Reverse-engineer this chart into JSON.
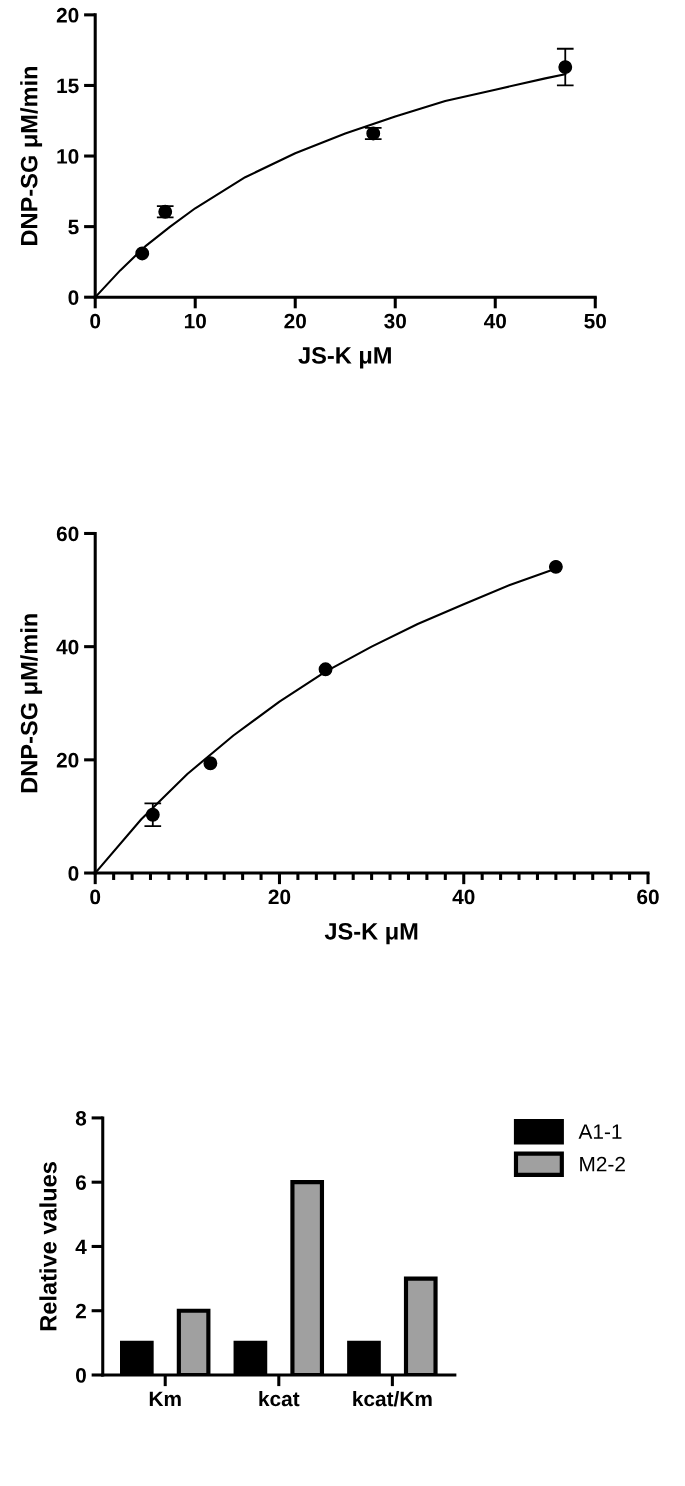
{
  "chart_data": [
    {
      "type": "scatter",
      "xlabel": "JS-K μM",
      "ylabel": "DNP-SG μM/min",
      "xlim": [
        0,
        50
      ],
      "ylim": [
        0,
        20
      ],
      "xticks": [
        0,
        10,
        20,
        30,
        40,
        50
      ],
      "yticks": [
        0,
        5,
        10,
        15,
        20
      ],
      "grid": false,
      "marker": "circle",
      "series": [
        {
          "type": "scatter",
          "color": "#000000",
          "x": [
            4.7,
            7,
            27.8,
            47
          ],
          "values": [
            3.1,
            6.05,
            11.6,
            16.3
          ],
          "errors": [
            null,
            0.4,
            0.4,
            1.3
          ]
        },
        {
          "type": "line",
          "color": "#000000",
          "marker": "none",
          "x": [
            0,
            2.5,
            5,
            7.5,
            10,
            15,
            20,
            25,
            30,
            35,
            40,
            45,
            47
          ],
          "values": [
            0,
            1.9,
            3.6,
            5.0,
            6.3,
            8.5,
            10.2,
            11.6,
            12.8,
            13.9,
            14.7,
            15.5,
            15.8
          ]
        }
      ]
    },
    {
      "type": "scatter",
      "xlabel": "JS-K μM",
      "ylabel": "DNP-SG μM/min",
      "xlim": [
        0,
        60
      ],
      "ylim": [
        0,
        60
      ],
      "xticks": [
        0,
        {
          "value": 2,
          "label": null
        },
        {
          "value": 4,
          "label": null
        },
        {
          "value": 6,
          "label": null
        },
        {
          "value": 8,
          "label": null
        },
        {
          "value": 10,
          "label": null
        },
        {
          "value": 12,
          "label": null
        },
        {
          "value": 14,
          "label": null
        },
        {
          "value": 16,
          "label": null
        },
        {
          "value": 18,
          "label": null
        },
        20,
        {
          "value": 22,
          "label": null
        },
        {
          "value": 24,
          "label": null
        },
        {
          "value": 26,
          "label": null
        },
        {
          "value": 28,
          "label": null
        },
        {
          "value": 30,
          "label": null
        },
        {
          "value": 32,
          "label": null
        },
        {
          "value": 34,
          "label": null
        },
        {
          "value": 36,
          "label": null
        },
        {
          "value": 38,
          "label": null
        },
        40,
        {
          "value": 42,
          "label": null
        },
        {
          "value": 44,
          "label": null
        },
        {
          "value": 46,
          "label": null
        },
        {
          "value": 48,
          "label": null
        },
        {
          "value": 50,
          "label": null
        },
        {
          "value": 52,
          "label": null
        },
        {
          "value": 54,
          "label": null
        },
        {
          "value": 56,
          "label": null
        },
        {
          "value": 58,
          "label": null
        },
        60
      ],
      "yticks": [
        0,
        20,
        40,
        60
      ],
      "grid": false,
      "marker": "circle",
      "series": [
        {
          "type": "scatter",
          "color": "#000000",
          "x": [
            6.25,
            12.5,
            25,
            50
          ],
          "values": [
            10.3,
            19.4,
            36,
            54.1
          ],
          "errors": [
            2,
            null,
            null,
            null
          ]
        },
        {
          "type": "line",
          "color": "#000000",
          "marker": "none",
          "x": [
            0,
            5,
            10,
            15,
            20,
            25,
            30,
            35,
            40,
            45,
            50
          ],
          "values": [
            0,
            9.5,
            17.5,
            24.3,
            30.3,
            35.6,
            40,
            44,
            47.5,
            50.9,
            53.8
          ]
        }
      ]
    },
    {
      "type": "bar",
      "ylabel": "Relative values",
      "categories": [
        "Km",
        "kcat",
        "kcat/Km"
      ],
      "ylim": [
        0,
        8
      ],
      "yticks": [
        0,
        2,
        4,
        6,
        8
      ],
      "grid": false,
      "legend": "top right",
      "series": [
        {
          "name": "A1-1",
          "color": "#000000",
          "values": [
            1,
            1,
            1
          ]
        },
        {
          "name": "M2-2",
          "color": "#a0a0a0",
          "values": [
            2,
            6,
            3
          ]
        }
      ]
    }
  ]
}
